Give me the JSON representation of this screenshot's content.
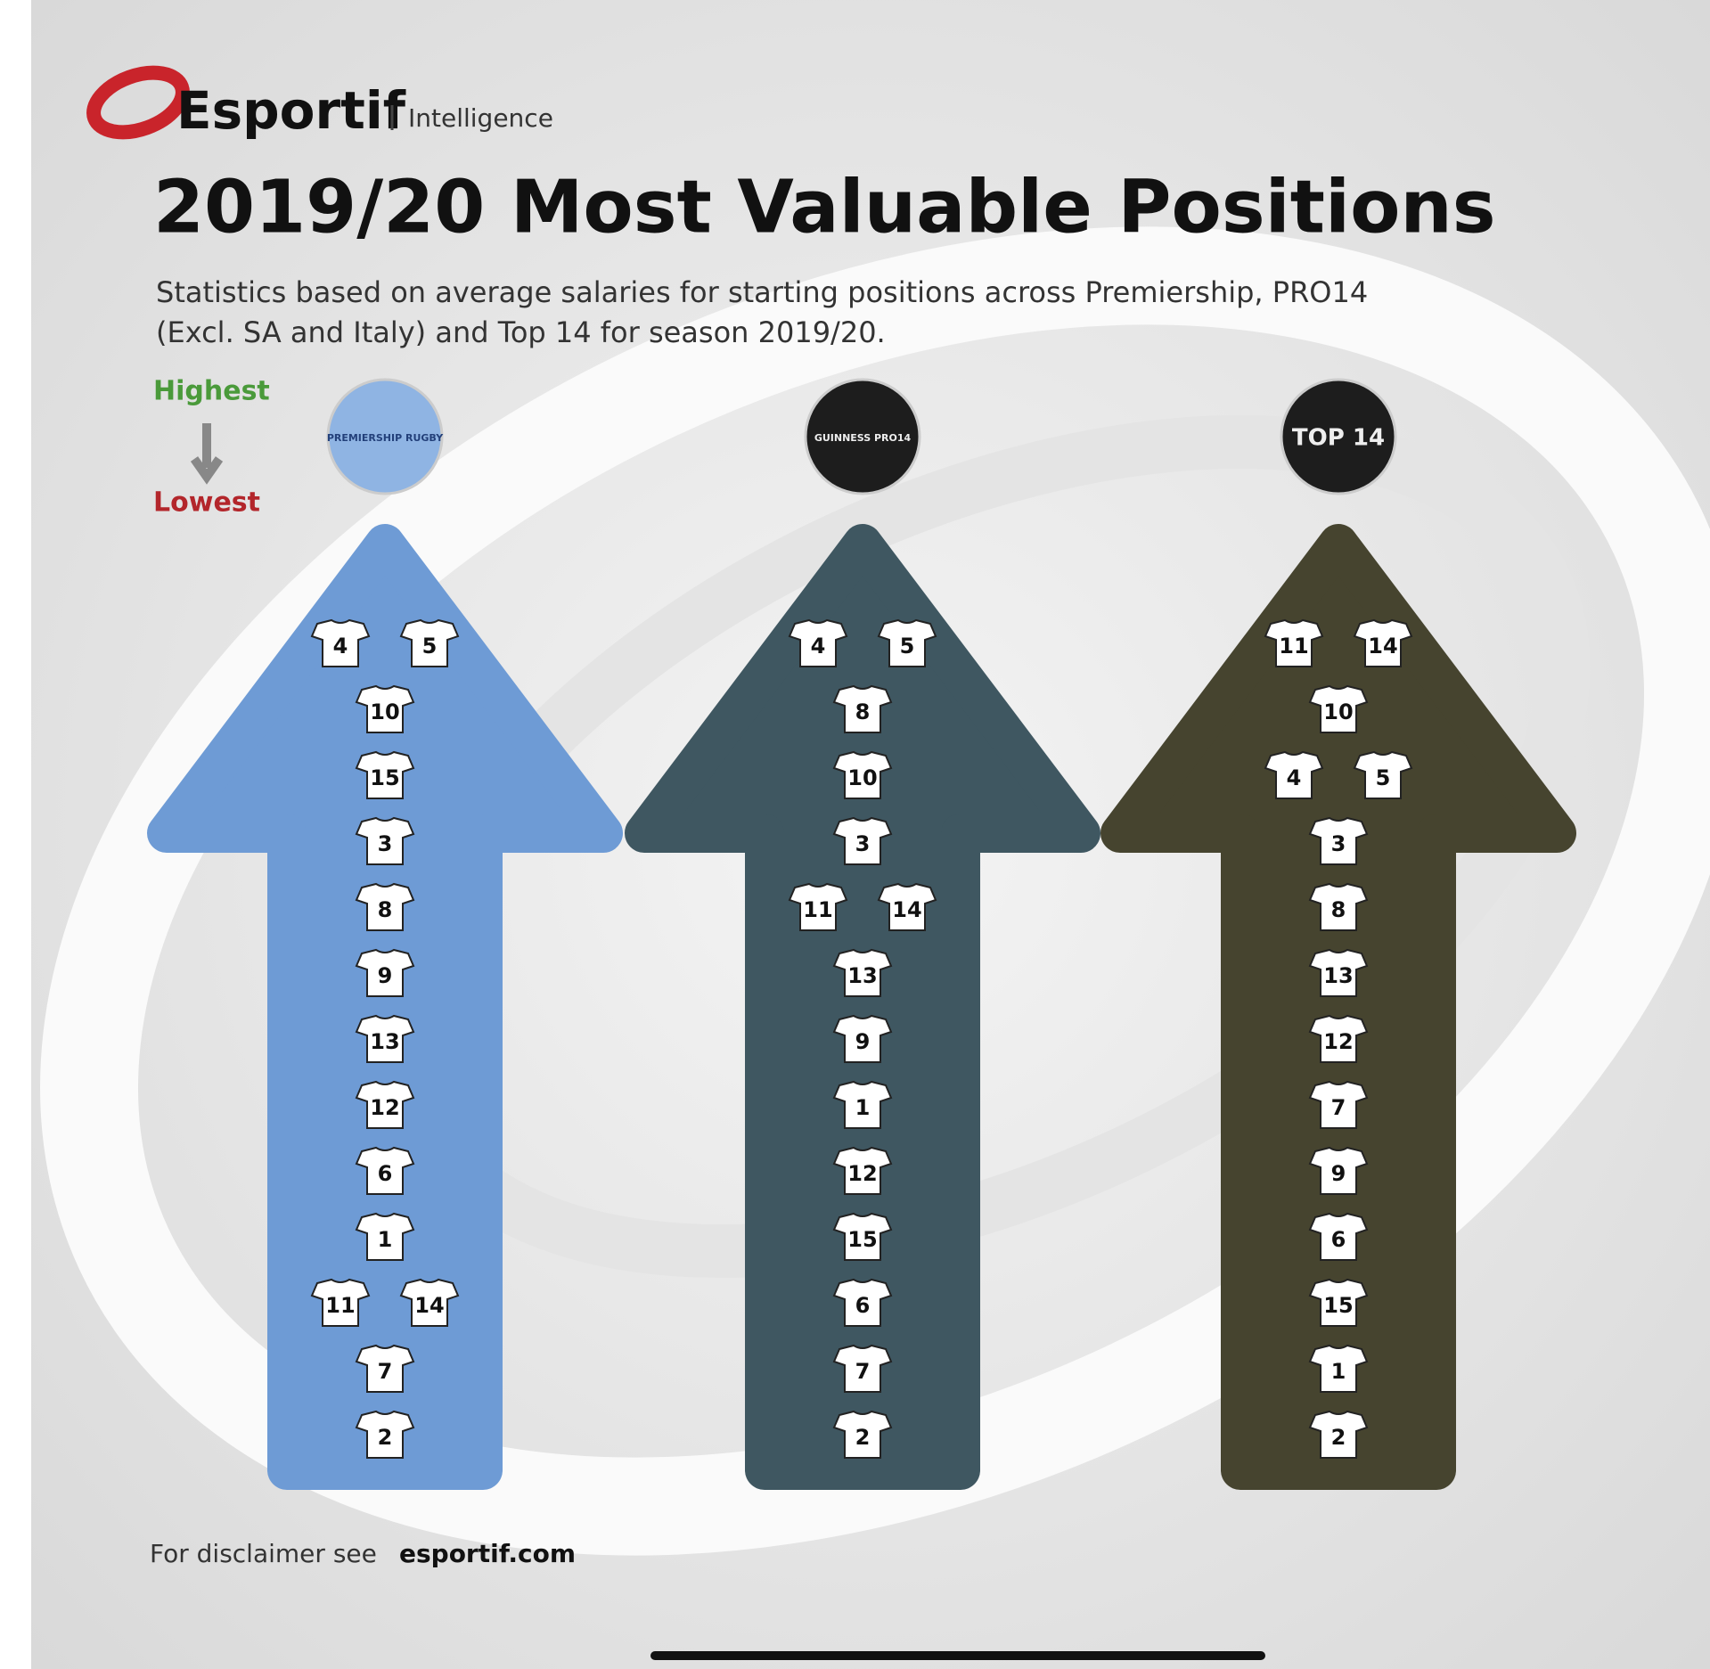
{
  "header": {
    "brand": "Esportif",
    "tagline": "Intelligence",
    "title": "2019/20 Most Valuable Positions",
    "subtitle_lines": [
      "Statistics based on average salaries for starting positions across Premiership, PRO14",
      "(Excl. SA and Italy) and Top 14 for season 2019/20."
    ]
  },
  "legend": {
    "high": "Highest",
    "low": "Lowest"
  },
  "columns": [
    {
      "logo": "PREMIERSHIP RUGBY",
      "color": "#6e9bd5",
      "logo_bg": "#8fb4e3",
      "rows": [
        [
          4,
          5
        ],
        [
          10
        ],
        [
          15
        ],
        [
          3
        ],
        [
          8
        ],
        [
          9
        ],
        [
          13
        ],
        [
          12
        ],
        [
          6
        ],
        [
          1
        ],
        [
          11,
          14
        ],
        [
          7
        ],
        [
          2
        ]
      ]
    },
    {
      "logo": "GUINNESS PRO14",
      "color": "#3f5761",
      "logo_bg": "#1d1d1d",
      "rows": [
        [
          4,
          5
        ],
        [
          8
        ],
        [
          10
        ],
        [
          3
        ],
        [
          11,
          14
        ],
        [
          13
        ],
        [
          9
        ],
        [
          1
        ],
        [
          12
        ],
        [
          15
        ],
        [
          6
        ],
        [
          7
        ],
        [
          2
        ]
      ]
    },
    {
      "logo": "TOP 14",
      "color": "#46442f",
      "logo_bg": "#1d1d1d",
      "rows": [
        [
          11,
          14
        ],
        [
          10
        ],
        [
          4,
          5
        ],
        [
          3
        ],
        [
          8
        ],
        [
          13
        ],
        [
          12
        ],
        [
          7
        ],
        [
          9
        ],
        [
          6
        ],
        [
          15
        ],
        [
          1
        ],
        [
          2
        ]
      ]
    }
  ],
  "footer": {
    "text": "For disclaimer see",
    "link": "esportif.com"
  }
}
